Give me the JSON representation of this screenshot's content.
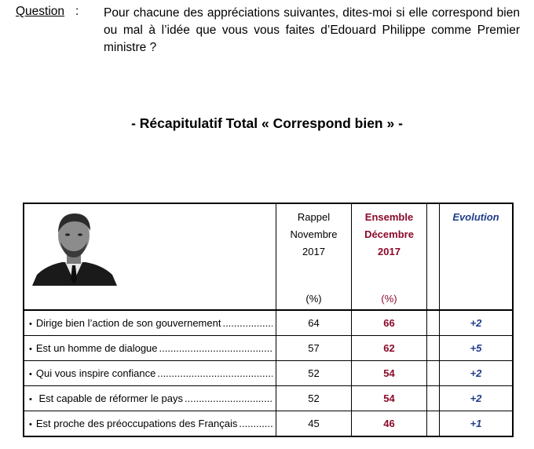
{
  "question": {
    "label": "Question",
    "colon": ":",
    "text": "Pour chacune des appréciations suivantes, dites-moi si elle correspond bien ou mal à l’idée que vous vous faites d’Edouard Philippe comme Premier ministre ?"
  },
  "title": "- Récapitulatif Total « Correspond bien » -",
  "table": {
    "headers": {
      "rappel": [
        "Rappel",
        "Novembre",
        "2017"
      ],
      "ensemble": [
        "Ensemble",
        "Décembre",
        "2017"
      ],
      "evolution": "Evolution",
      "rappel_unit": "(%)",
      "ensemble_unit": "(%)"
    },
    "rows": [
      {
        "label": "Dirige bien l’action de son gouvernement",
        "rappel": "64",
        "ensemble": "66",
        "evolution": "+2"
      },
      {
        "label": "Est un homme de dialogue",
        "rappel": "57",
        "ensemble": "62",
        "evolution": "+5"
      },
      {
        "label": "Qui vous inspire confiance",
        "rappel": "52",
        "ensemble": "54",
        "evolution": "+2"
      },
      {
        "label": " Est capable de réformer le pays",
        "rappel": "52",
        "ensemble": "54",
        "evolution": "+2"
      },
      {
        "label": "Est proche des préoccupations des Français",
        "rappel": "45",
        "ensemble": "46",
        "evolution": "+1"
      }
    ],
    "bullet": "•",
    "photo_icon": "portrait-photo"
  },
  "colors": {
    "ensemble": "#8b0a2a",
    "evolution": "#1f3c8a"
  }
}
